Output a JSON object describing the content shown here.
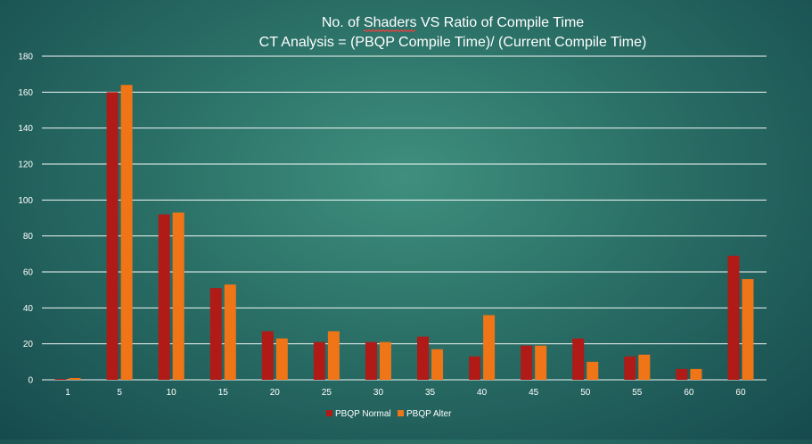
{
  "colors": {
    "series_normal": "#b01a17",
    "series_alter": "#f07517",
    "text": "#ffffff",
    "gridline": "#ffffff",
    "squiggle": "#ff3b3b"
  },
  "chart_data": {
    "type": "bar",
    "title_line1_prefix": "No. of ",
    "title_line1_underlined": "Shaders",
    "title_line1_suffix": " VS Ratio of Compile  Time",
    "title_line2": "CT Analysis = (PBQP Compile Time)/  (Current Compile Time)",
    "xlabel": "",
    "ylabel": "",
    "categories": [
      "1",
      "5",
      "10",
      "15",
      "20",
      "25",
      "30",
      "35",
      "40",
      "45",
      "50",
      "55",
      "60",
      "60"
    ],
    "series": [
      {
        "name": "PBQP Normal",
        "values": [
          0.5,
          160,
          92,
          51,
          27,
          21,
          21,
          24,
          13,
          19,
          23,
          13,
          6,
          69
        ]
      },
      {
        "name": "PBQP Alter",
        "values": [
          1,
          164,
          93,
          53,
          23,
          27,
          21,
          17,
          36,
          19,
          10,
          14,
          6,
          56
        ]
      }
    ],
    "ylim": [
      0,
      180
    ],
    "yticks": [
      0,
      20,
      40,
      60,
      80,
      100,
      120,
      140,
      160,
      180
    ],
    "grid": true,
    "legend_position": "bottom-center"
  }
}
